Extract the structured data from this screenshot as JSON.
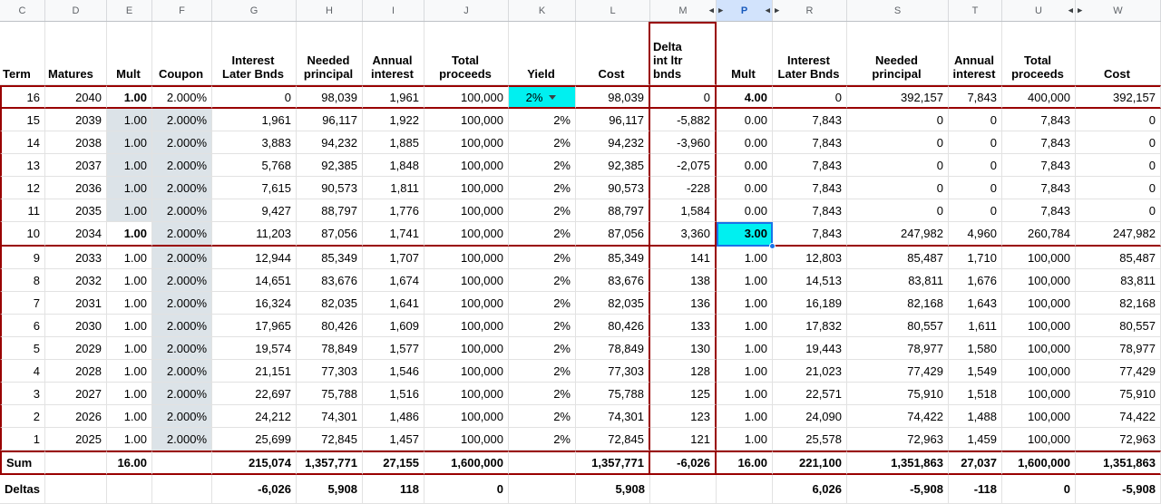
{
  "app": {
    "type": "spreadsheet-grid"
  },
  "colors": {
    "highlight_cyan": "#00f0f0",
    "border_red": "#990000",
    "selection_blue": "#1a73e8",
    "shaded_cell": "#dce3e8",
    "active_col_bg": "#d2e3fc"
  },
  "selection": {
    "column": "P"
  },
  "columns": [
    {
      "letter": "C"
    },
    {
      "letter": "D"
    },
    {
      "letter": "E"
    },
    {
      "letter": "F"
    },
    {
      "letter": "G"
    },
    {
      "letter": "H"
    },
    {
      "letter": "I"
    },
    {
      "letter": "J"
    },
    {
      "letter": "K"
    },
    {
      "letter": "L"
    },
    {
      "letter": "M",
      "hidden_cols_right": true
    },
    {
      "letter": "P",
      "hidden_cols_left": true,
      "hidden_cols_right": true,
      "active": true
    },
    {
      "letter": "R",
      "hidden_cols_left": true
    },
    {
      "letter": "S"
    },
    {
      "letter": "T"
    },
    {
      "letter": "U",
      "hidden_cols_right": true
    },
    {
      "letter": "W",
      "hidden_cols_left": true
    }
  ],
  "table": {
    "headers": [
      "Term",
      "Matures",
      "Mult",
      "Coupon",
      "Interest\nLater Bnds",
      "Needed\nprincipal",
      "Annual\ninterest",
      "Total\nproceeds",
      "Yield",
      "Cost",
      "Delta\nint ltr\nbnds",
      "Mult",
      "Interest\nLater Bnds",
      "Needed\nprincipal",
      "Annual\ninterest",
      "Total\nproceeds",
      "Cost"
    ],
    "yield_dropdown_value": "2%",
    "rows": [
      [
        "16",
        "2040",
        "1.00",
        "2.000%",
        "0",
        "98,039",
        "1,961",
        "100,000",
        "2%",
        "98,039",
        "0",
        "4.00",
        "0",
        "392,157",
        "7,843",
        "400,000",
        "392,157"
      ],
      [
        "15",
        "2039",
        "1.00",
        "2.000%",
        "1,961",
        "96,117",
        "1,922",
        "100,000",
        "2%",
        "96,117",
        "-5,882",
        "0.00",
        "7,843",
        "0",
        "0",
        "7,843",
        "0"
      ],
      [
        "14",
        "2038",
        "1.00",
        "2.000%",
        "3,883",
        "94,232",
        "1,885",
        "100,000",
        "2%",
        "94,232",
        "-3,960",
        "0.00",
        "7,843",
        "0",
        "0",
        "7,843",
        "0"
      ],
      [
        "13",
        "2037",
        "1.00",
        "2.000%",
        "5,768",
        "92,385",
        "1,848",
        "100,000",
        "2%",
        "92,385",
        "-2,075",
        "0.00",
        "7,843",
        "0",
        "0",
        "7,843",
        "0"
      ],
      [
        "12",
        "2036",
        "1.00",
        "2.000%",
        "7,615",
        "90,573",
        "1,811",
        "100,000",
        "2%",
        "90,573",
        "-228",
        "0.00",
        "7,843",
        "0",
        "0",
        "7,843",
        "0"
      ],
      [
        "11",
        "2035",
        "1.00",
        "2.000%",
        "9,427",
        "88,797",
        "1,776",
        "100,000",
        "2%",
        "88,797",
        "1,584",
        "0.00",
        "7,843",
        "0",
        "0",
        "7,843",
        "0"
      ],
      [
        "10",
        "2034",
        "1.00",
        "2.000%",
        "11,203",
        "87,056",
        "1,741",
        "100,000",
        "2%",
        "87,056",
        "3,360",
        "3.00",
        "7,843",
        "247,982",
        "4,960",
        "260,784",
        "247,982"
      ],
      [
        "9",
        "2033",
        "1.00",
        "2.000%",
        "12,944",
        "85,349",
        "1,707",
        "100,000",
        "2%",
        "85,349",
        "141",
        "1.00",
        "12,803",
        "85,487",
        "1,710",
        "100,000",
        "85,487"
      ],
      [
        "8",
        "2032",
        "1.00",
        "2.000%",
        "14,651",
        "83,676",
        "1,674",
        "100,000",
        "2%",
        "83,676",
        "138",
        "1.00",
        "14,513",
        "83,811",
        "1,676",
        "100,000",
        "83,811"
      ],
      [
        "7",
        "2031",
        "1.00",
        "2.000%",
        "16,324",
        "82,035",
        "1,641",
        "100,000",
        "2%",
        "82,035",
        "136",
        "1.00",
        "16,189",
        "82,168",
        "1,643",
        "100,000",
        "82,168"
      ],
      [
        "6",
        "2030",
        "1.00",
        "2.000%",
        "17,965",
        "80,426",
        "1,609",
        "100,000",
        "2%",
        "80,426",
        "133",
        "1.00",
        "17,832",
        "80,557",
        "1,611",
        "100,000",
        "80,557"
      ],
      [
        "5",
        "2029",
        "1.00",
        "2.000%",
        "19,574",
        "78,849",
        "1,577",
        "100,000",
        "2%",
        "78,849",
        "130",
        "1.00",
        "19,443",
        "78,977",
        "1,580",
        "100,000",
        "78,977"
      ],
      [
        "4",
        "2028",
        "1.00",
        "2.000%",
        "21,151",
        "77,303",
        "1,546",
        "100,000",
        "2%",
        "77,303",
        "128",
        "1.00",
        "21,023",
        "77,429",
        "1,549",
        "100,000",
        "77,429"
      ],
      [
        "3",
        "2027",
        "1.00",
        "2.000%",
        "22,697",
        "75,788",
        "1,516",
        "100,000",
        "2%",
        "75,788",
        "125",
        "1.00",
        "22,571",
        "75,910",
        "1,518",
        "100,000",
        "75,910"
      ],
      [
        "2",
        "2026",
        "1.00",
        "2.000%",
        "24,212",
        "74,301",
        "1,486",
        "100,000",
        "2%",
        "74,301",
        "123",
        "1.00",
        "24,090",
        "74,422",
        "1,488",
        "100,000",
        "74,422"
      ],
      [
        "1",
        "2025",
        "1.00",
        "2.000%",
        "25,699",
        "72,845",
        "1,457",
        "100,000",
        "2%",
        "72,845",
        "121",
        "1.00",
        "25,578",
        "72,963",
        "1,459",
        "100,000",
        "72,963"
      ]
    ],
    "sum_row": [
      "Sum",
      "",
      "16.00",
      "",
      "215,074",
      "1,357,771",
      "27,155",
      "1,600,000",
      "",
      "1,357,771",
      "-6,026",
      "16.00",
      "221,100",
      "1,351,863",
      "27,037",
      "1,600,000",
      "1,351,863"
    ],
    "deltas_row": [
      "Deltas",
      "",
      "",
      "",
      "-6,026",
      "5,908",
      "118",
      "0",
      "",
      "5,908",
      "",
      "",
      "6,026",
      "-5,908",
      "-118",
      "0",
      "-5,908"
    ]
  }
}
